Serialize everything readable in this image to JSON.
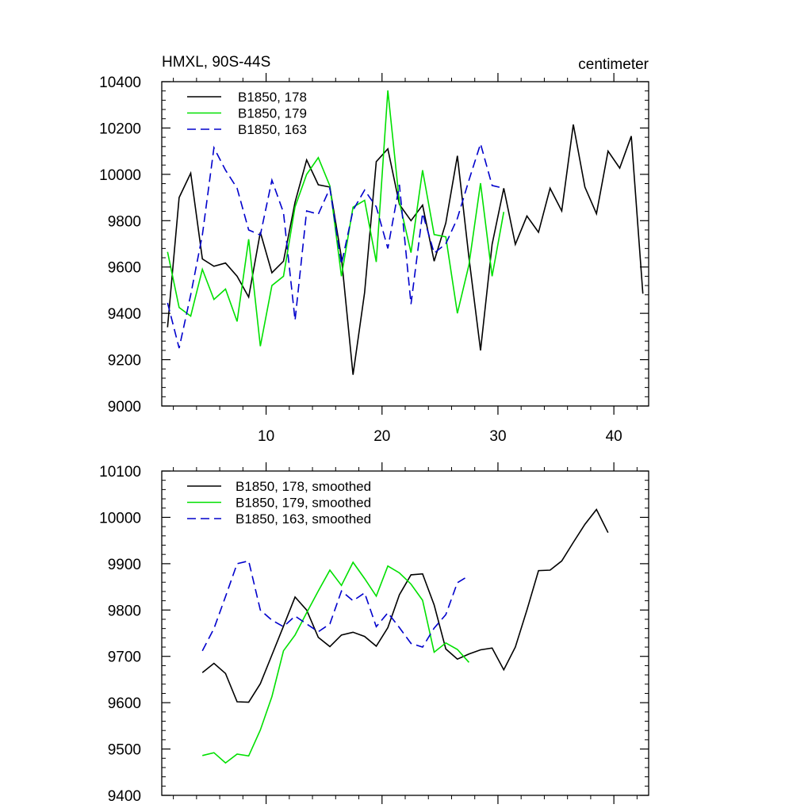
{
  "chart_data": [
    {
      "type": "line",
      "title_left": "HMXL, 90S-44S",
      "title_right": "centimeter",
      "xlim": [
        1,
        43
      ],
      "ylim": [
        9000,
        10400
      ],
      "xticks": [
        10,
        20,
        30,
        40
      ],
      "yticks": [
        9000,
        9200,
        9400,
        9600,
        9800,
        10000,
        10200,
        10400
      ],
      "series": [
        {
          "name": "B1850, 178",
          "color": "#000000",
          "dash": "solid",
          "x": [
            1.5,
            2.5,
            3.5,
            4.5,
            5.5,
            6.5,
            7.5,
            8.5,
            9.5,
            10.5,
            11.5,
            12.5,
            13.5,
            14.5,
            15.5,
            16.5,
            17.5,
            18.5,
            19.5,
            20.5,
            21.5,
            22.5,
            23.5,
            24.5,
            25.5,
            26.5,
            27.5,
            28.5,
            29.5,
            30.5,
            31.5,
            32.5,
            33.5,
            34.5,
            35.5,
            36.5,
            37.5,
            38.5,
            39.5,
            40.5,
            41.5,
            42.5
          ],
          "values": [
            9340,
            9900,
            10005,
            9635,
            9603,
            9617,
            9560,
            9470,
            9750,
            9575,
            9625,
            9880,
            10062,
            9955,
            9945,
            9640,
            9135,
            9490,
            10055,
            10110,
            9870,
            9800,
            9867,
            9625,
            9790,
            10080,
            9640,
            9240,
            9698,
            9940,
            9698,
            9820,
            9750,
            9940,
            9842,
            10215,
            9945,
            9830,
            10100,
            10027,
            10165,
            9485
          ]
        },
        {
          "name": "B1850, 179",
          "color": "#00e000",
          "dash": "solid",
          "x": [
            1.5,
            2.5,
            3.5,
            4.5,
            5.5,
            6.5,
            7.5,
            8.5,
            9.5,
            10.5,
            11.5,
            12.5,
            13.5,
            14.5,
            15.5,
            16.5,
            17.5,
            18.5,
            19.5,
            20.5,
            21.5,
            22.5,
            23.5,
            24.5,
            25.5,
            26.5,
            27.5,
            28.5,
            29.5,
            30.5
          ],
          "values": [
            9665,
            9425,
            9388,
            9590,
            9460,
            9505,
            9365,
            9720,
            9258,
            9520,
            9560,
            9860,
            10000,
            10072,
            9950,
            9560,
            9858,
            9888,
            9622,
            10362,
            9880,
            9662,
            10018,
            9740,
            9730,
            9400,
            9610,
            9962,
            9560,
            9838
          ]
        },
        {
          "name": "B1850, 163",
          "color": "#0000cc",
          "dash": "dashed",
          "x": [
            1.5,
            2.5,
            3.5,
            4.5,
            5.5,
            6.5,
            7.5,
            8.5,
            9.5,
            10.5,
            11.5,
            12.5,
            13.5,
            14.5,
            15.5,
            16.5,
            17.5,
            18.5,
            19.5,
            20.5,
            21.5,
            22.5,
            23.5,
            24.5,
            25.5,
            26.5,
            27.5,
            28.5,
            29.5,
            30.5
          ],
          "values": [
            9445,
            9250,
            9480,
            9738,
            10115,
            10018,
            9940,
            9760,
            9738,
            9975,
            9835,
            9370,
            9842,
            9828,
            9940,
            9612,
            9845,
            9932,
            9860,
            9680,
            9955,
            9440,
            9832,
            9660,
            9700,
            9810,
            9975,
            10132,
            9952,
            9940
          ]
        }
      ]
    },
    {
      "type": "line",
      "xlim": [
        1,
        43
      ],
      "ylim": [
        9400,
        10100
      ],
      "xticks": [
        10,
        20,
        30,
        40
      ],
      "yticks": [
        9400,
        9500,
        9600,
        9700,
        9800,
        9900,
        10000,
        10100
      ],
      "series": [
        {
          "name": "B1850, 178, smoothed",
          "color": "#000000",
          "dash": "solid",
          "x": [
            4.5,
            5.5,
            6.5,
            7.5,
            8.5,
            9.5,
            10.5,
            11.5,
            12.5,
            13.5,
            14.5,
            15.5,
            16.5,
            17.5,
            18.5,
            19.5,
            20.5,
            21.5,
            22.5,
            23.5,
            24.5,
            25.5,
            26.5,
            27.5,
            28.5,
            29.5,
            30.5,
            31.5,
            32.5,
            33.5,
            34.5,
            35.5,
            36.5,
            37.5,
            38.5,
            39.5
          ],
          "values": [
            9665,
            9685,
            9663,
            9602,
            9601,
            9641,
            9703,
            9765,
            9828,
            9800,
            9741,
            9721,
            9746,
            9752,
            9743,
            9722,
            9762,
            9833,
            9876,
            9878,
            9811,
            9716,
            9694,
            9705,
            9714,
            9718,
            9671,
            9720,
            9800,
            9885,
            9886,
            9906,
            9946,
            9985,
            10017,
            9967
          ]
        },
        {
          "name": "B1850, 179, smoothed",
          "color": "#00e000",
          "dash": "solid",
          "x": [
            4.5,
            5.5,
            6.5,
            7.5,
            8.5,
            9.5,
            10.5,
            11.5,
            12.5,
            13.5,
            14.5,
            15.5,
            16.5,
            17.5,
            18.5,
            19.5,
            20.5,
            21.5,
            22.5,
            23.5,
            24.5,
            25.5,
            26.5,
            27.5
          ],
          "values": [
            9486,
            9492,
            9470,
            9489,
            9485,
            9541,
            9613,
            9712,
            9746,
            9794,
            9841,
            9886,
            9853,
            9903,
            9868,
            9830,
            9895,
            9880,
            9856,
            9821,
            9709,
            9729,
            9715,
            9687
          ]
        },
        {
          "name": "B1850, 163, smoothed",
          "color": "#0000cc",
          "dash": "dashed",
          "x": [
            4.5,
            5.5,
            6.5,
            7.5,
            8.5,
            9.5,
            10.5,
            11.5,
            12.5,
            13.5,
            14.5,
            15.5,
            16.5,
            17.5,
            18.5,
            19.5,
            20.5,
            21.5,
            22.5,
            23.5,
            24.5,
            25.5,
            26.5,
            27.5
          ],
          "values": [
            9712,
            9760,
            9829,
            9900,
            9906,
            9800,
            9778,
            9764,
            9787,
            9770,
            9753,
            9770,
            9841,
            9820,
            9837,
            9764,
            9794,
            9762,
            9728,
            9720,
            9761,
            9790,
            9859,
            9874
          ]
        }
      ]
    }
  ]
}
